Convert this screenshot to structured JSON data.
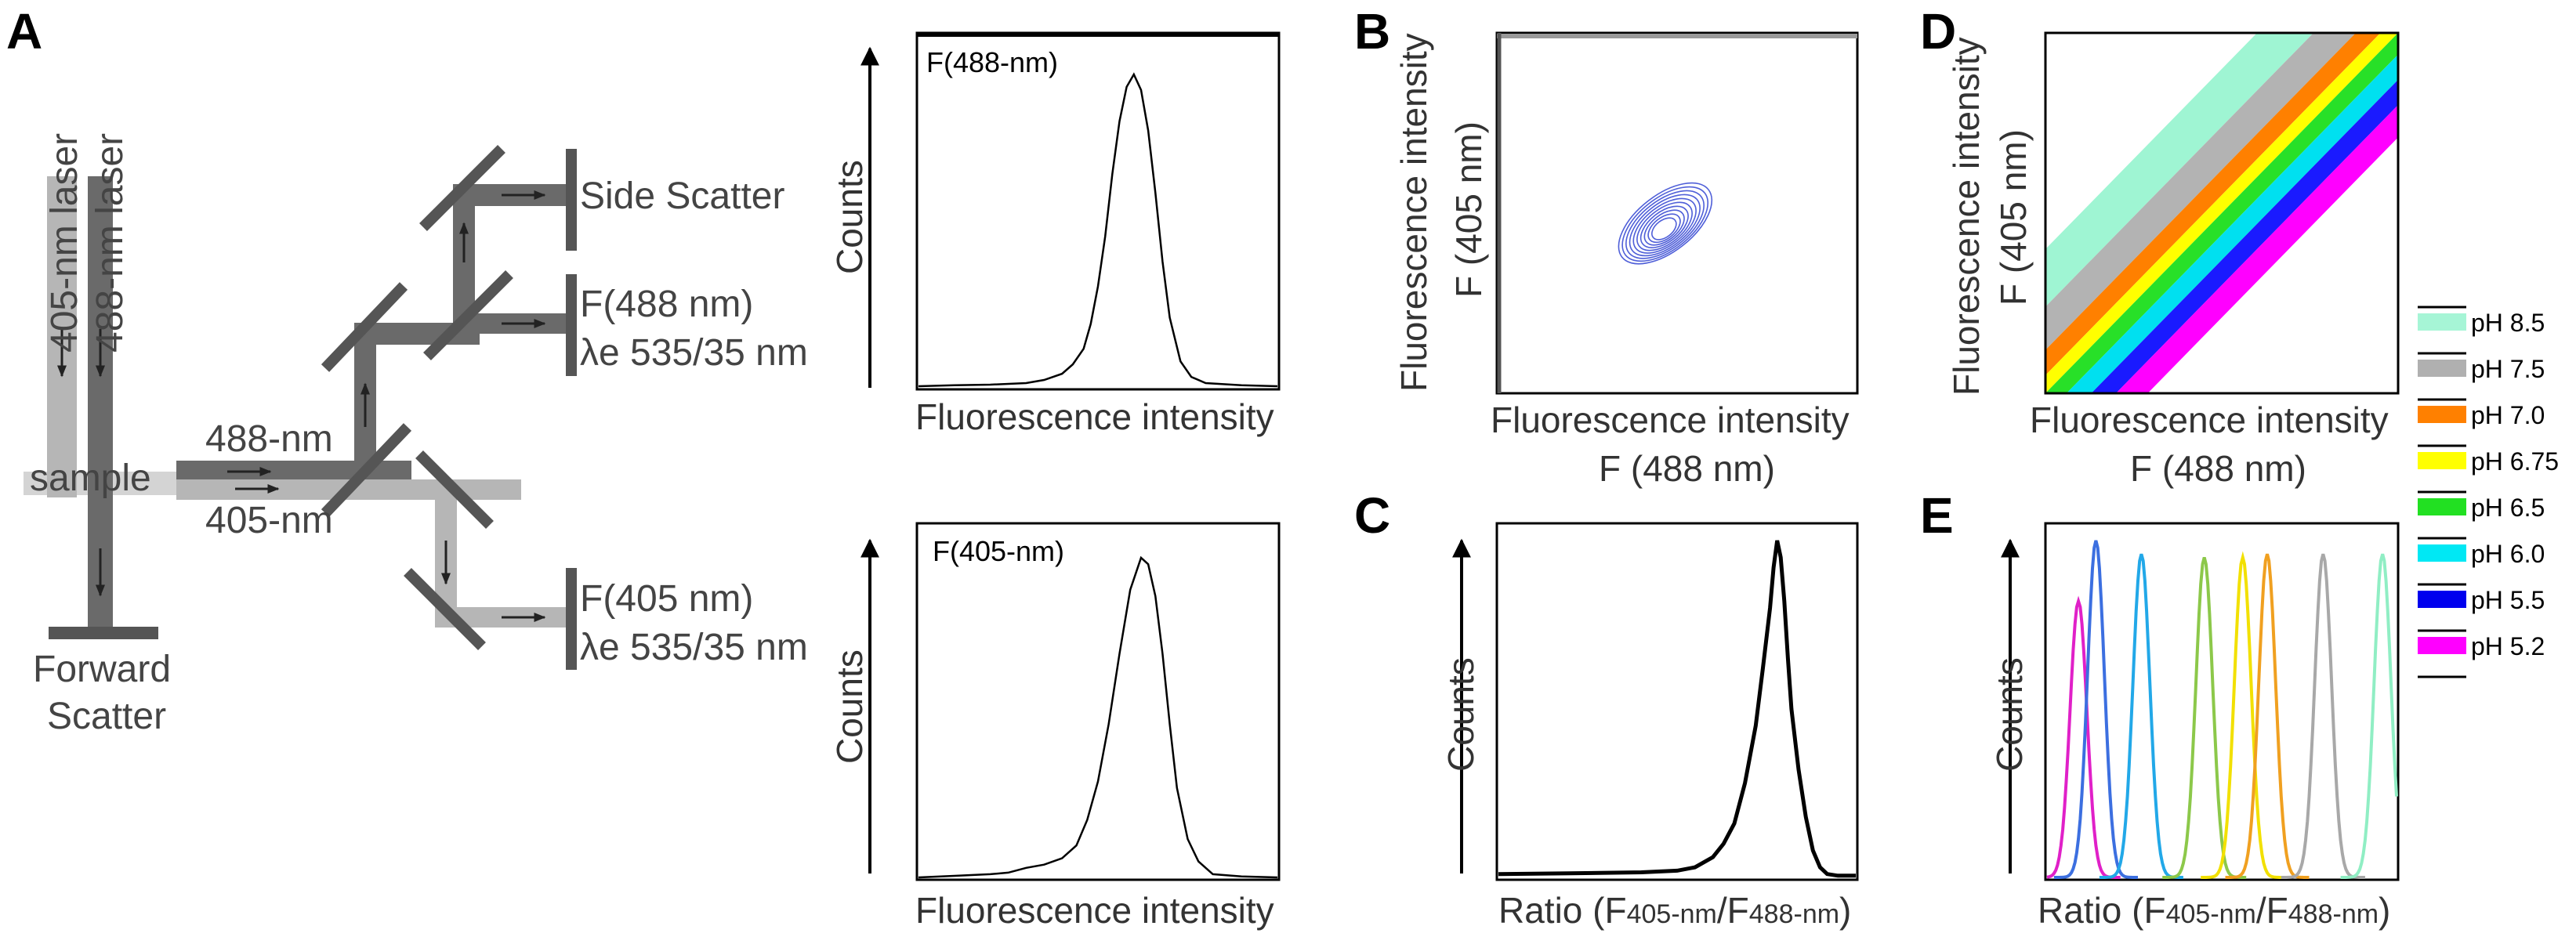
{
  "panel_letters": [
    "A",
    "B",
    "C",
    "D",
    "E"
  ],
  "diagram": {
    "laser_405": "405-nm laser",
    "laser_488": "488-nm laser",
    "beam_488": "488-nm",
    "beam_405": "405-nm",
    "sample": "sample",
    "side_scatter": "Side Scatter",
    "f488": "F(488 nm)",
    "f488_filter": "λe 535/35 nm",
    "f405": "F(405 nm)",
    "f405_filter": "λe 535/35 nm",
    "forward": "Forward",
    "scatter": "Scatter",
    "colors": {
      "dark": "#5f5f5f",
      "mid": "#9a9a9a",
      "light": "#cfcfcf"
    }
  },
  "chart_data": [
    {
      "id": "A-top",
      "type": "histogram",
      "title": "F(488-nm)",
      "xlabel": "Fluorescence intensity",
      "ylabel": "Counts",
      "xlim": [
        0,
        100
      ],
      "ylim": [
        0,
        100
      ],
      "x": [
        0,
        10,
        20,
        30,
        35,
        40,
        43,
        46,
        48,
        50,
        52,
        54,
        56,
        58,
        60,
        62,
        64,
        66,
        68,
        70,
        73,
        76,
        80,
        90,
        100
      ],
      "y": [
        0,
        0.3,
        0.5,
        1,
        2,
        4,
        7,
        12,
        20,
        32,
        48,
        68,
        85,
        96,
        100,
        95,
        82,
        62,
        40,
        22,
        8,
        3,
        1,
        0.3,
        0
      ]
    },
    {
      "id": "A-bottom",
      "type": "histogram",
      "title": "F(405-nm)",
      "xlabel": "Fluorescence intensity",
      "ylabel": "Counts",
      "xlim": [
        0,
        100
      ],
      "ylim": [
        0,
        100
      ],
      "x": [
        0,
        10,
        20,
        25,
        30,
        35,
        40,
        44,
        47,
        50,
        53,
        56,
        59,
        62,
        64,
        66,
        68,
        70,
        72,
        75,
        78,
        82,
        90,
        100
      ],
      "y": [
        0,
        0.5,
        1,
        1.5,
        3,
        4,
        6,
        10,
        18,
        30,
        48,
        70,
        90,
        100,
        98,
        88,
        70,
        48,
        28,
        12,
        5,
        1,
        0.3,
        0
      ]
    },
    {
      "id": "B",
      "type": "contour",
      "xlabel": "Fluorescence intensity",
      "xlabel2": "F (488 nm)",
      "ylabel": "Fluorescence intensity",
      "ylabel2": "F (405 nm)",
      "center": [
        52,
        52
      ],
      "levels": 10,
      "color": "#4f5fd8"
    },
    {
      "id": "C",
      "type": "line",
      "xlabel": "Ratio (F405-nm/F488-nm)",
      "ylabel": "Counts",
      "xlim": [
        0,
        100
      ],
      "ylim": [
        0,
        100
      ],
      "x": [
        0,
        20,
        40,
        50,
        55,
        60,
        63,
        66,
        69,
        72,
        74,
        76,
        77,
        78,
        79,
        80,
        81,
        82,
        84,
        86,
        88,
        90,
        92,
        95,
        100
      ],
      "y": [
        1,
        1.2,
        1.5,
        2,
        3,
        6,
        10,
        16,
        28,
        45,
        62,
        80,
        92,
        100,
        95,
        82,
        65,
        50,
        32,
        18,
        8,
        3,
        1,
        0.5,
        0.5
      ]
    },
    {
      "id": "D",
      "type": "scatter-density",
      "xlabel": "Fluorescence intensity",
      "xlabel2": "F (488 nm)",
      "ylabel": "Fluorescence intensity",
      "ylabel2": "F (405 nm)",
      "series": [
        {
          "name": "pH 8.5",
          "color": "#9ff5d3",
          "offset": 40
        },
        {
          "name": "pH 7.5",
          "color": "#b3b3b3",
          "offset": 24
        },
        {
          "name": "pH 7.0",
          "color": "#ff8000",
          "offset": 12
        },
        {
          "name": "pH 6.75",
          "color": "#ffff00",
          "offset": 5
        },
        {
          "name": "pH 6.5",
          "color": "#28e028",
          "offset": 0
        },
        {
          "name": "pH 6.0",
          "color": "#00e0f0",
          "offset": -6
        },
        {
          "name": "pH 5.5",
          "color": "#1a1aff",
          "offset": -13
        },
        {
          "name": "pH 5.2",
          "color": "#ff00ff",
          "offset": -20
        }
      ]
    },
    {
      "id": "E",
      "type": "line",
      "xlabel": "Ratio (F405-nm/F488-nm)",
      "ylabel": "Counts",
      "xlim": [
        0,
        100
      ],
      "ylim": [
        0,
        100
      ],
      "series": [
        {
          "name": "pH 5.2",
          "color": "#e020c8",
          "peak": 9,
          "height": 82
        },
        {
          "name": "pH 5.5",
          "color": "#3c6fe0",
          "peak": 14,
          "height": 100
        },
        {
          "name": "pH 6.0",
          "color": "#22a8e8",
          "peak": 27,
          "height": 96
        },
        {
          "name": "pH 6.5",
          "color": "#8cc84a",
          "peak": 45,
          "height": 95
        },
        {
          "name": "pH 6.75",
          "color": "#f2e000",
          "peak": 56,
          "height": 95
        },
        {
          "name": "pH 7.0",
          "color": "#f0a020",
          "peak": 63,
          "height": 96
        },
        {
          "name": "pH 7.5",
          "color": "#a8a8a8",
          "peak": 79,
          "height": 96
        },
        {
          "name": "pH 8.5",
          "color": "#90eec4",
          "peak": 96,
          "height": 96
        }
      ]
    }
  ],
  "legend": [
    {
      "label": "pH 8.5",
      "color": "#a6f5d6"
    },
    {
      "label": "pH 7.5",
      "color": "#b0b0b0"
    },
    {
      "label": "pH 7.0",
      "color": "#ff8000"
    },
    {
      "label": "pH 6.75",
      "color": "#ffff00"
    },
    {
      "label": "pH 6.5",
      "color": "#22e022"
    },
    {
      "label": "pH 6.0",
      "color": "#00e8f4"
    },
    {
      "label": "pH 5.5",
      "color": "#0000ee"
    },
    {
      "label": "pH 5.2",
      "color": "#ff00ff"
    }
  ],
  "panel_C_ratio": {
    "prefix": "Ratio (F",
    "sub1": "405-nm",
    "mid": "/F",
    "sub2": "488-nm",
    "suffix": ")"
  },
  "panel_E_ratio": {
    "prefix": "Ratio (F",
    "sub1": "405-nm",
    "mid": "/F",
    "sub2": "488-nm",
    "suffix": ")"
  }
}
